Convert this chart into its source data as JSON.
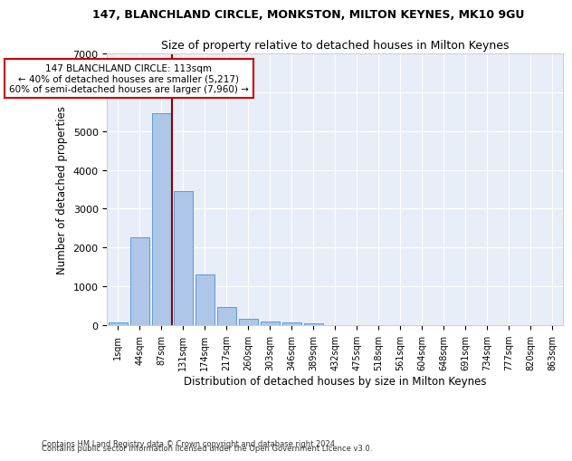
{
  "title1": "147, BLANCHLAND CIRCLE, MONKSTON, MILTON KEYNES, MK10 9GU",
  "title2": "Size of property relative to detached houses in Milton Keynes",
  "xlabel": "Distribution of detached houses by size in Milton Keynes",
  "ylabel": "Number of detached properties",
  "footnote1": "Contains HM Land Registry data © Crown copyright and database right 2024.",
  "footnote2": "Contains public sector information licensed under the Open Government Licence v3.0.",
  "annotation_line1": "147 BLANCHLAND CIRCLE: 113sqm",
  "annotation_line2": "← 40% of detached houses are smaller (5,217)",
  "annotation_line3": "60% of semi-detached houses are larger (7,960) →",
  "bar_color": "#aec6e8",
  "bar_edge_color": "#5b9bd5",
  "vline_color": "#8b0000",
  "vline_x": 2.5,
  "background_color": "#e8eef7",
  "categories": [
    "1sqm",
    "44sqm",
    "87sqm",
    "131sqm",
    "174sqm",
    "217sqm",
    "260sqm",
    "303sqm",
    "346sqm",
    "389sqm",
    "432sqm",
    "475sqm",
    "518sqm",
    "561sqm",
    "604sqm",
    "648sqm",
    "691sqm",
    "734sqm",
    "777sqm",
    "820sqm",
    "863sqm"
  ],
  "values": [
    80,
    2270,
    5470,
    3450,
    1310,
    470,
    160,
    90,
    60,
    40,
    0,
    0,
    0,
    0,
    0,
    0,
    0,
    0,
    0,
    0,
    0
  ],
  "ylim": [
    0,
    7000
  ],
  "yticks": [
    0,
    1000,
    2000,
    3000,
    4000,
    5000,
    6000,
    7000
  ],
  "vline_position": 2.5
}
